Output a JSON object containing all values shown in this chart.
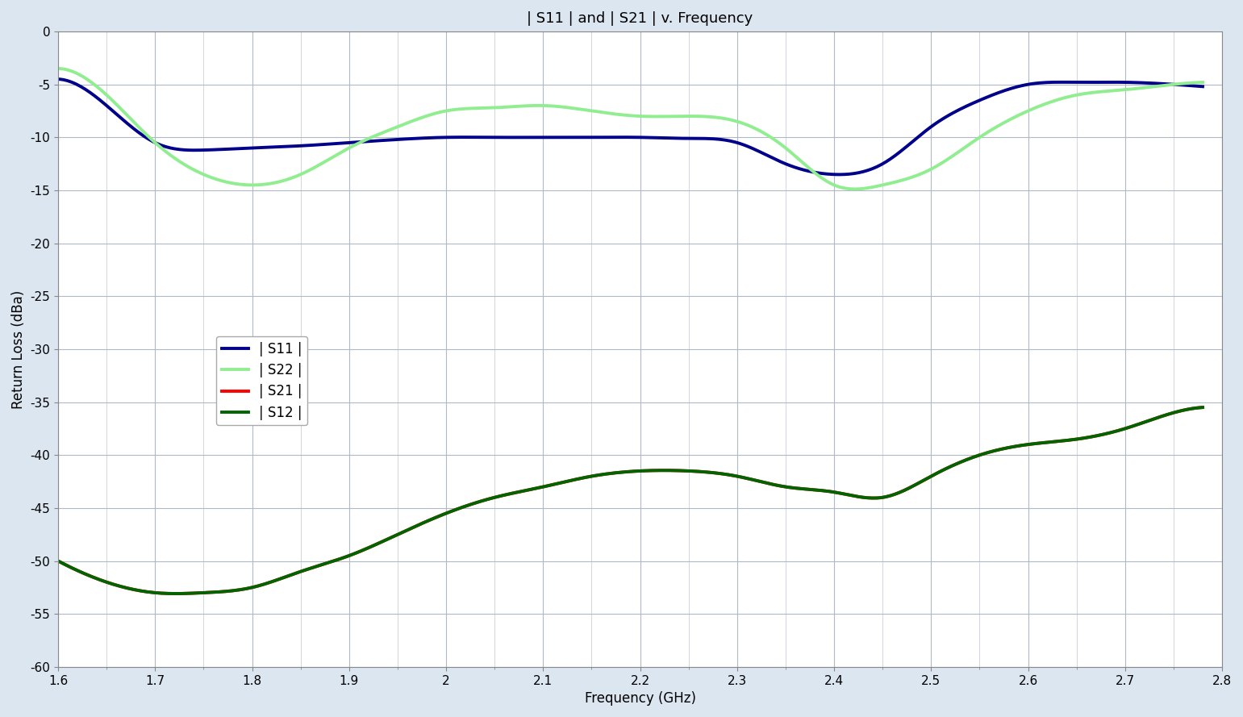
{
  "title": "| S11 | and | S21 | v. Frequency",
  "xlabel": "Frequency (GHz)",
  "ylabel": "Return Loss (dBa)",
  "xlim": [
    1.6,
    2.8
  ],
  "ylim": [
    -60,
    0
  ],
  "xticks": [
    1.6,
    1.7,
    1.8,
    1.9,
    2.0,
    2.1,
    2.2,
    2.3,
    2.4,
    2.5,
    2.6,
    2.7,
    2.8
  ],
  "yticks": [
    0,
    -5,
    -10,
    -15,
    -20,
    -25,
    -30,
    -35,
    -40,
    -45,
    -50,
    -55,
    -60
  ],
  "background_color": "#dce6f1",
  "plot_bg_color": "#ffffff",
  "grid_color": "#b0b8c8",
  "s11_color": "#00008B",
  "s22_color": "#90EE90",
  "s21_color": "#FF0000",
  "s12_color": "#006400",
  "legend_labels": [
    "| S11 |",
    "| S22 |",
    "| S21 |",
    "| S12 |"
  ],
  "s11_x": [
    1.6,
    1.65,
    1.7,
    1.75,
    1.8,
    1.85,
    1.9,
    1.95,
    2.0,
    2.05,
    2.1,
    2.15,
    2.2,
    2.25,
    2.3,
    2.35,
    2.4,
    2.45,
    2.5,
    2.55,
    2.6,
    2.65,
    2.7,
    2.75,
    2.78
  ],
  "s11_y": [
    -4.5,
    -7.0,
    -10.5,
    -11.2,
    -11.0,
    -10.8,
    -10.5,
    -10.2,
    -10.0,
    -10.0,
    -10.0,
    -10.0,
    -10.0,
    -10.1,
    -10.5,
    -12.5,
    -13.5,
    -12.5,
    -9.0,
    -6.5,
    -5.0,
    -4.8,
    -4.8,
    -5.0,
    -5.2
  ],
  "s22_x": [
    1.6,
    1.65,
    1.7,
    1.75,
    1.8,
    1.85,
    1.9,
    1.95,
    2.0,
    2.05,
    2.1,
    2.15,
    2.2,
    2.25,
    2.3,
    2.35,
    2.4,
    2.45,
    2.5,
    2.55,
    2.6,
    2.65,
    2.7,
    2.75,
    2.78
  ],
  "s22_y": [
    -3.5,
    -6.0,
    -10.5,
    -13.5,
    -14.5,
    -13.5,
    -11.0,
    -9.0,
    -7.5,
    -7.2,
    -7.0,
    -7.5,
    -8.0,
    -8.0,
    -8.5,
    -11.0,
    -14.5,
    -14.5,
    -13.0,
    -10.0,
    -7.5,
    -6.0,
    -5.5,
    -5.0,
    -4.8
  ],
  "s12_x": [
    1.6,
    1.65,
    1.7,
    1.75,
    1.8,
    1.85,
    1.9,
    1.95,
    2.0,
    2.05,
    2.1,
    2.15,
    2.2,
    2.25,
    2.3,
    2.35,
    2.4,
    2.45,
    2.5,
    2.55,
    2.6,
    2.65,
    2.7,
    2.75,
    2.78
  ],
  "s12_y": [
    -50.0,
    -52.0,
    -53.0,
    -53.0,
    -52.5,
    -51.0,
    -49.5,
    -47.5,
    -45.5,
    -44.0,
    -43.0,
    -42.0,
    -41.5,
    -41.5,
    -42.0,
    -43.0,
    -43.5,
    -44.0,
    -42.0,
    -40.0,
    -39.0,
    -38.5,
    -37.5,
    -36.0,
    -35.5
  ],
  "s21_x": [
    1.6,
    1.65,
    1.7,
    1.75,
    1.8,
    1.85,
    1.9,
    1.95,
    2.0,
    2.05,
    2.1,
    2.15,
    2.2,
    2.25,
    2.3,
    2.35,
    2.4,
    2.45,
    2.5,
    2.55,
    2.6,
    2.65,
    2.7,
    2.75,
    2.78
  ],
  "s21_y": [
    -50.0,
    -52.0,
    -53.0,
    -53.0,
    -52.5,
    -51.0,
    -49.5,
    -47.5,
    -45.5,
    -44.0,
    -43.0,
    -42.0,
    -41.5,
    -41.5,
    -42.0,
    -43.0,
    -43.5,
    -44.0,
    -42.0,
    -40.0,
    -39.0,
    -38.5,
    -37.5,
    -36.0,
    -35.5
  ]
}
